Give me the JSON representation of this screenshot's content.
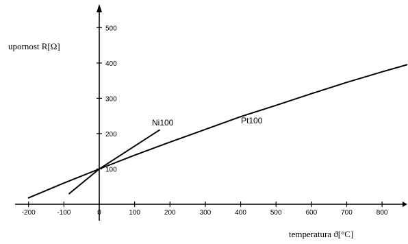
{
  "chart_data": {
    "type": "line",
    "xlabel": "temperatura ϑ[°C]",
    "ylabel": "upornost R[Ω]",
    "xlim": [
      -210,
      870
    ],
    "ylim": [
      0,
      530
    ],
    "x_ticks": [
      -200,
      -100,
      0,
      100,
      200,
      300,
      400,
      500,
      600,
      700,
      800
    ],
    "y_ticks": [
      100,
      200,
      300,
      400,
      500
    ],
    "grid": false,
    "series": [
      {
        "name": "Pt100",
        "x": [
          -200,
          -100,
          0,
          100,
          200,
          300,
          400,
          500,
          600,
          700,
          800,
          870
        ],
        "y": [
          18,
          60,
          100,
          139,
          176,
          212,
          248,
          280,
          313,
          345,
          375,
          395
        ]
      },
      {
        "name": "Ni100",
        "x": [
          -85,
          0,
          170
        ],
        "y": [
          30,
          100,
          210
        ]
      }
    ]
  }
}
